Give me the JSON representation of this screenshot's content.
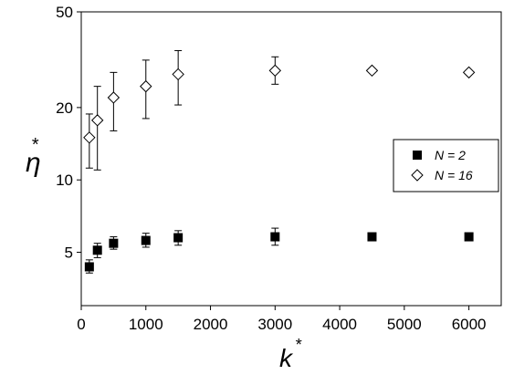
{
  "chart_data": {
    "type": "scatter",
    "xlabel": "k",
    "xlabel_sup": "*",
    "ylabel": "η",
    "ylabel_sup": "*",
    "x_scale": "linear",
    "y_scale": "log",
    "xlim": [
      0,
      6500
    ],
    "ylim": [
      3,
      50
    ],
    "x_ticks": [
      0,
      1000,
      2000,
      3000,
      4000,
      5000,
      6000
    ],
    "y_ticks": [
      5,
      10,
      20,
      50
    ],
    "grid": false,
    "legend_position": "right",
    "series": [
      {
        "name": "N = 2",
        "marker": "filled-square",
        "color": "#000000",
        "points": [
          {
            "x": 125,
            "y": 4.35,
            "err_low": 4.1,
            "err_high": 4.65
          },
          {
            "x": 250,
            "y": 5.1,
            "err_low": 4.75,
            "err_high": 5.45
          },
          {
            "x": 500,
            "y": 5.45,
            "err_low": 5.15,
            "err_high": 5.8
          },
          {
            "x": 1000,
            "y": 5.6,
            "err_low": 5.25,
            "err_high": 6.0
          },
          {
            "x": 1500,
            "y": 5.75,
            "err_low": 5.35,
            "err_high": 6.15
          },
          {
            "x": 3000,
            "y": 5.8,
            "err_low": 5.35,
            "err_high": 6.3
          },
          {
            "x": 4500,
            "y": 5.8
          },
          {
            "x": 6000,
            "y": 5.8
          }
        ]
      },
      {
        "name": "N = 16",
        "marker": "open-diamond",
        "color": "#000000",
        "points": [
          {
            "x": 125,
            "y": 15.0,
            "err_low": 11.2,
            "err_high": 18.8
          },
          {
            "x": 250,
            "y": 17.7,
            "err_low": 11.0,
            "err_high": 24.5
          },
          {
            "x": 500,
            "y": 22.0,
            "err_low": 16.0,
            "err_high": 28.0
          },
          {
            "x": 1000,
            "y": 24.5,
            "err_low": 18.0,
            "err_high": 31.5
          },
          {
            "x": 1500,
            "y": 27.5,
            "err_low": 20.5,
            "err_high": 34.5
          },
          {
            "x": 3000,
            "y": 28.5,
            "err_low": 25.0,
            "err_high": 32.5
          },
          {
            "x": 4500,
            "y": 28.5
          },
          {
            "x": 6000,
            "y": 28.0
          }
        ]
      }
    ]
  }
}
